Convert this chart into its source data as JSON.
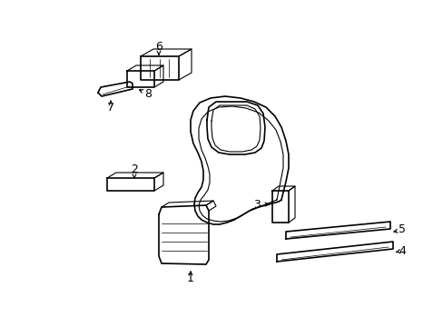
{
  "bg_color": "#ffffff",
  "line_color": "#000000",
  "lw_main": 1.2,
  "lw_detail": 0.8,
  "lw_thin": 0.5,
  "figsize": [
    4.89,
    3.6
  ],
  "dpi": 100
}
